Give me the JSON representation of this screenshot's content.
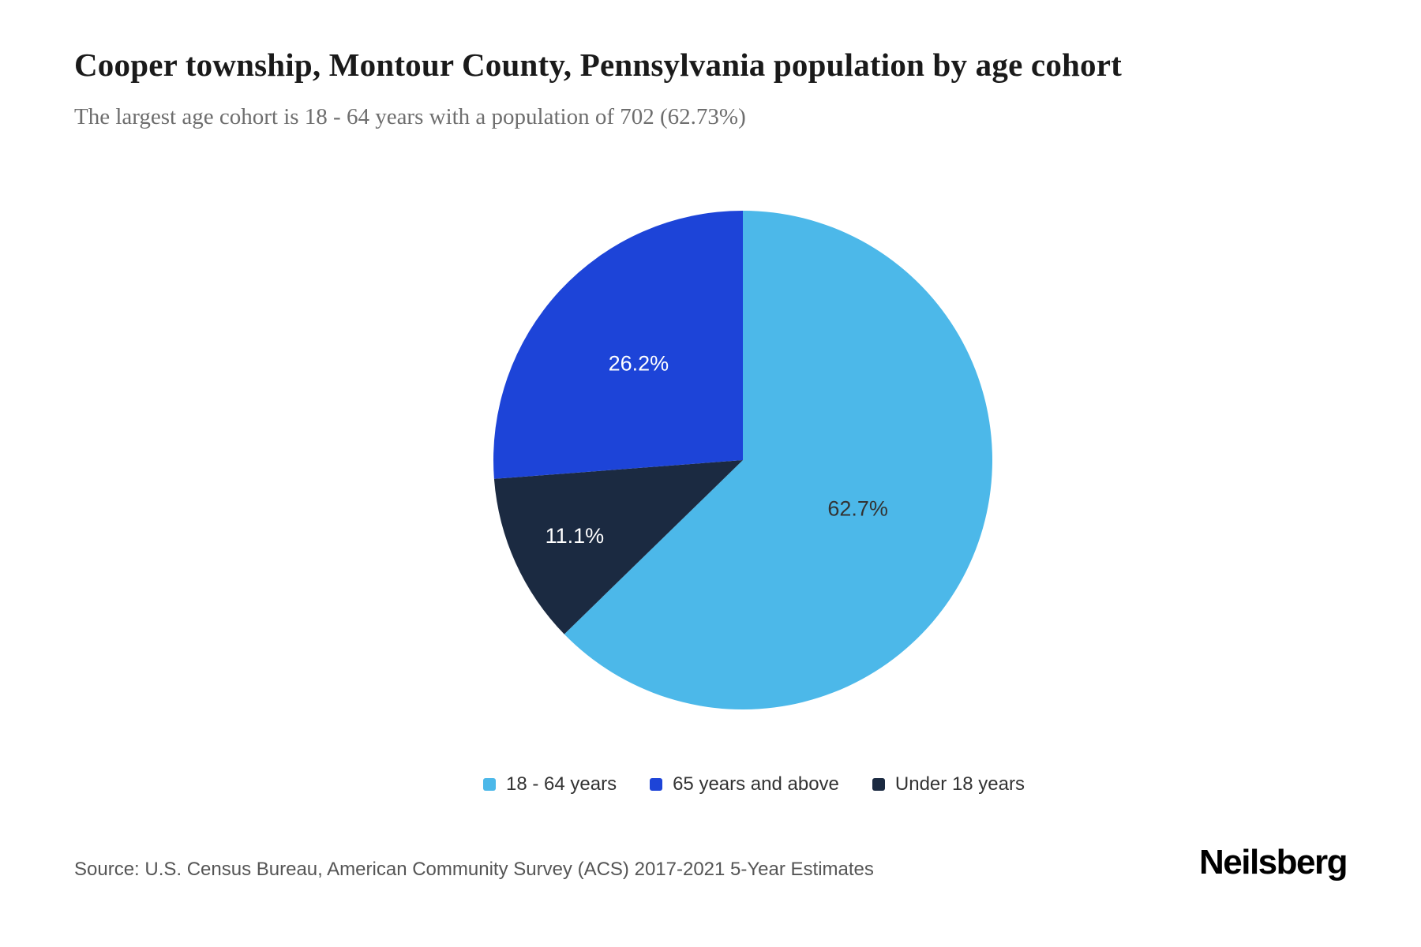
{
  "header": {
    "title": "Cooper township, Montour County, Pennsylvania population by age cohort",
    "subtitle": "The largest age cohort is 18 - 64 years with a population of 702 (62.73%)"
  },
  "chart_data": {
    "type": "pie",
    "title": "Cooper township, Montour County, Pennsylvania population by age cohort",
    "subtitle": "The largest age cohort is 18 - 64 years with a population of 702 (62.73%)",
    "start_angle_deg": 0,
    "direction": "clockwise",
    "slices": [
      {
        "label": "18 - 64 years",
        "percent": 62.7,
        "display": "62.7%",
        "color": "#4cb8e9",
        "text_color": "#333333",
        "label_radius": 0.5
      },
      {
        "label": "Under 18 years",
        "percent": 11.1,
        "display": "11.1%",
        "color": "#1b2a41",
        "text_color": "#ffffff",
        "label_radius": 0.74
      },
      {
        "label": "65 years and above",
        "percent": 26.2,
        "display": "26.2%",
        "color": "#1d44d8",
        "text_color": "#ffffff",
        "label_radius": 0.57
      }
    ],
    "legend_order": [
      0,
      2,
      1
    ],
    "legend_position": "bottom",
    "largest_cohort": {
      "label": "18 - 64 years",
      "population": 702,
      "percent_display": "62.73%"
    }
  },
  "footer": {
    "source": "Source: U.S. Census Bureau, American Community Survey (ACS) 2017-2021 5-Year Estimates",
    "brand": "Neilsberg"
  }
}
